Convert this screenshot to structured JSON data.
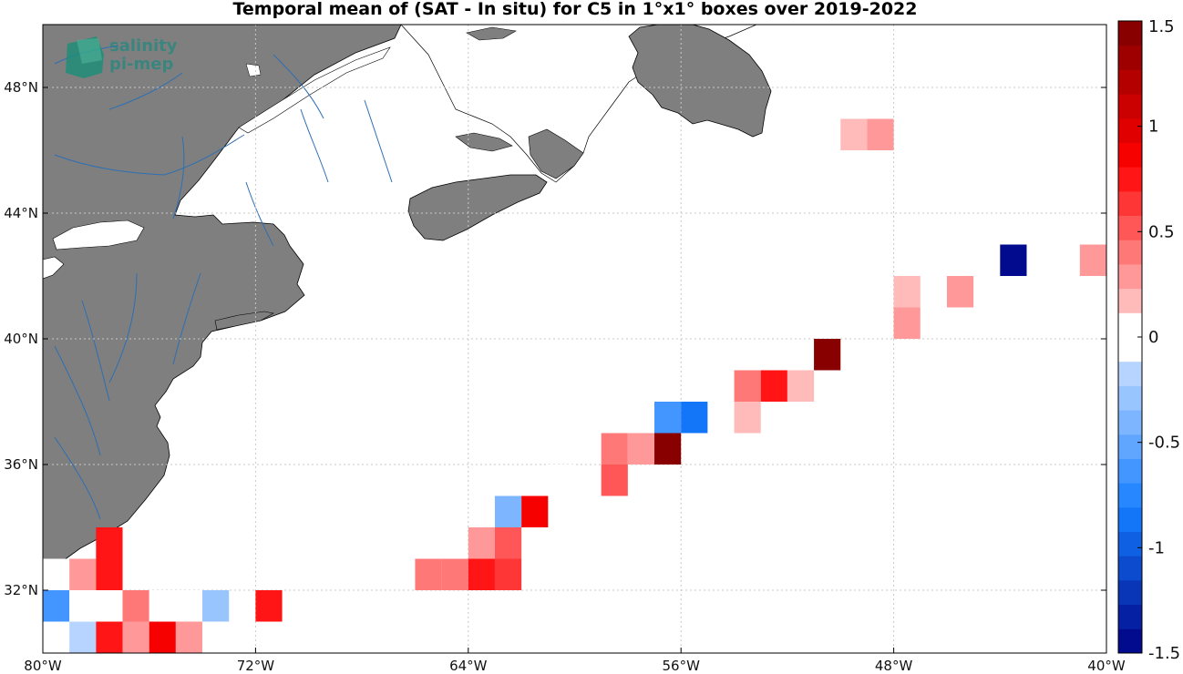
{
  "title": "Temporal mean of (SAT - In situ) for C5 in 1°x1° boxes over 2019-2022",
  "logo": {
    "line1": "salinity",
    "line2": "pi-mep"
  },
  "colors": {
    "land": "#7f7f7f",
    "river": "#2d6fb3",
    "coast": "#000000",
    "grid": "#bdbdbd"
  },
  "chart_data": {
    "type": "heatmap",
    "title": "Temporal mean of (SAT - In situ) for C5 in 1°x1° boxes over 2019-2022",
    "xlabel": "",
    "ylabel": "",
    "xlim": [
      -80,
      -40
    ],
    "ylim": [
      30,
      50
    ],
    "x_ticks": [
      {
        "value": -80,
        "label": "80°W"
      },
      {
        "value": -72,
        "label": "72°W"
      },
      {
        "value": -64,
        "label": "64°W"
      },
      {
        "value": -56,
        "label": "56°W"
      },
      {
        "value": -48,
        "label": "48°W"
      },
      {
        "value": -40,
        "label": "40°W"
      }
    ],
    "y_ticks": [
      {
        "value": 32,
        "label": "32°N"
      },
      {
        "value": 36,
        "label": "36°N"
      },
      {
        "value": 40,
        "label": "40°N"
      },
      {
        "value": 44,
        "label": "44°N"
      },
      {
        "value": 48,
        "label": "48°N"
      }
    ],
    "grid": true,
    "colorbar": {
      "range": [
        -1.5,
        1.5
      ],
      "ticks": [
        {
          "value": 1.5,
          "label": "1.5"
        },
        {
          "value": 1,
          "label": "1"
        },
        {
          "value": 0.5,
          "label": "0.5"
        },
        {
          "value": 0,
          "label": "0"
        },
        {
          "value": -0.5,
          "label": "-0.5"
        },
        {
          "value": -1,
          "label": "-1"
        },
        {
          "value": -1.5,
          "label": "-1.5"
        }
      ],
      "levels": 26
    },
    "cells": [
      {
        "lat": 46.5,
        "lon": -50.5,
        "value": -0.05
      },
      {
        "lat": 46.5,
        "lon": -49.5,
        "value": 0.12
      },
      {
        "lat": 46.5,
        "lon": -48.5,
        "value": 0.3
      },
      {
        "lat": 42.5,
        "lon": -43.5,
        "value": -1.5
      },
      {
        "lat": 42.5,
        "lon": -40.5,
        "value": 0.3
      },
      {
        "lat": 41.5,
        "lon": -47.5,
        "value": 0.15
      },
      {
        "lat": 41.5,
        "lon": -45.5,
        "value": 0.3
      },
      {
        "lat": 40.5,
        "lon": -47.5,
        "value": 0.3
      },
      {
        "lat": 39.5,
        "lon": -50.5,
        "value": 1.5
      },
      {
        "lat": 38.5,
        "lon": -53.5,
        "value": 0.45
      },
      {
        "lat": 38.5,
        "lon": -52.5,
        "value": 0.75
      },
      {
        "lat": 38.5,
        "lon": -51.5,
        "value": 0.15
      },
      {
        "lat": 37.5,
        "lon": -56.5,
        "value": -0.65
      },
      {
        "lat": 37.5,
        "lon": -55.5,
        "value": -0.85
      },
      {
        "lat": 37.5,
        "lon": -53.5,
        "value": 0.15
      },
      {
        "lat": 36.5,
        "lon": -58.5,
        "value": 0.4
      },
      {
        "lat": 36.5,
        "lon": -57.5,
        "value": 0.3
      },
      {
        "lat": 36.5,
        "lon": -56.5,
        "value": 1.4
      },
      {
        "lat": 35.5,
        "lon": -60.5,
        "value": -0.05
      },
      {
        "lat": 35.5,
        "lon": -58.5,
        "value": 0.55
      },
      {
        "lat": 34.5,
        "lon": -62.5,
        "value": -0.35
      },
      {
        "lat": 34.5,
        "lon": -61.5,
        "value": 0.85
      },
      {
        "lat": 33.5,
        "lon": -63.5,
        "value": 0.3
      },
      {
        "lat": 33.5,
        "lon": -62.5,
        "value": 0.55
      },
      {
        "lat": 33.5,
        "lon": -77.5,
        "value": 0.8
      },
      {
        "lat": 32.5,
        "lon": -65.5,
        "value": 0.4
      },
      {
        "lat": 32.5,
        "lon": -64.5,
        "value": 0.45
      },
      {
        "lat": 32.5,
        "lon": -63.5,
        "value": 0.8
      },
      {
        "lat": 32.5,
        "lon": -62.5,
        "value": 0.65
      },
      {
        "lat": 32.5,
        "lon": -79.5,
        "value": 0
      },
      {
        "lat": 32.5,
        "lon": -78.5,
        "value": 0.3
      },
      {
        "lat": 32.5,
        "lon": -77.5,
        "value": 0.8
      },
      {
        "lat": 31.5,
        "lon": -79.5,
        "value": -0.65
      },
      {
        "lat": 31.5,
        "lon": -78.5,
        "value": 0
      },
      {
        "lat": 31.5,
        "lon": -77.5,
        "value": 0
      },
      {
        "lat": 31.5,
        "lon": -76.5,
        "value": 0.45
      },
      {
        "lat": 31.5,
        "lon": -75.5,
        "value": 0
      },
      {
        "lat": 31.5,
        "lon": -74.5,
        "value": 0
      },
      {
        "lat": 31.5,
        "lon": -73.5,
        "value": -0.25
      },
      {
        "lat": 31.5,
        "lon": -71.5,
        "value": 0.8
      },
      {
        "lat": 30.5,
        "lon": -79.5,
        "value": 0
      },
      {
        "lat": 30.5,
        "lon": -78.5,
        "value": -0.2
      },
      {
        "lat": 30.5,
        "lon": -77.5,
        "value": 0.8
      },
      {
        "lat": 30.5,
        "lon": -76.5,
        "value": 0.3
      },
      {
        "lat": 30.5,
        "lon": -75.5,
        "value": 0.85
      },
      {
        "lat": 30.5,
        "lon": -74.5,
        "value": 0.3
      },
      {
        "lat": 30.5,
        "lon": -73.5,
        "value": -0.05
      }
    ]
  }
}
